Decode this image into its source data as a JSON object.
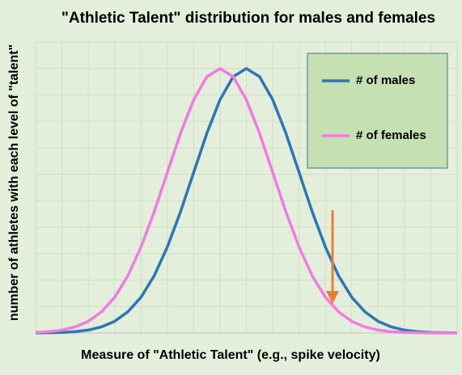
{
  "chart_data": {
    "type": "line",
    "title": "\"Athletic Talent\" distribution for males and females",
    "x_label": "Measure of \"Athletic Talent\" (e.g., spike velocity)",
    "y_label": "number of athletes with each level of \"talent\"",
    "x": [
      0,
      0.5,
      1,
      1.5,
      2,
      2.5,
      3,
      3.5,
      4,
      4.5,
      5,
      5.5,
      6,
      6.5,
      7,
      7.5,
      8,
      8.5,
      9,
      9.5,
      10,
      10.5,
      11,
      11.5,
      12,
      12.5,
      13,
      13.5,
      14,
      14.5,
      15,
      15.5,
      16
    ],
    "series": [
      {
        "name": "# of males",
        "color": "#2e75b6",
        "values": [
          0,
          0.01,
          0.02,
          0.05,
          0.11,
          0.23,
          0.44,
          0.8,
          1.35,
          2.16,
          3.25,
          4.58,
          6.07,
          7.55,
          8.82,
          9.69,
          10,
          9.69,
          8.82,
          7.55,
          6.07,
          4.58,
          3.25,
          2.16,
          1.35,
          0.8,
          0.44,
          0.23,
          0.11,
          0.05,
          0.02,
          0.01,
          0
        ]
      },
      {
        "name": "# of females",
        "color": "#f47ae0",
        "values": [
          0.02,
          0.05,
          0.11,
          0.23,
          0.44,
          0.8,
          1.35,
          2.16,
          3.25,
          4.58,
          6.07,
          7.55,
          8.82,
          9.69,
          10,
          9.69,
          8.82,
          7.55,
          6.07,
          4.58,
          3.25,
          2.16,
          1.35,
          0.8,
          0.44,
          0.23,
          0.11,
          0.05,
          0.02,
          0.01,
          0,
          0,
          0
        ]
      }
    ],
    "xlim": [
      0,
      16
    ],
    "ylim": [
      0,
      11
    ],
    "xticks": [
      0,
      1,
      2,
      3,
      4,
      5,
      6,
      7,
      8,
      9,
      10,
      11,
      12,
      13,
      14,
      15,
      16
    ],
    "yticks": [
      0,
      1,
      2,
      3,
      4,
      5,
      6,
      7,
      8,
      9,
      10,
      11
    ],
    "tick_labels": false,
    "grid": true,
    "legend": "upper right"
  }
}
